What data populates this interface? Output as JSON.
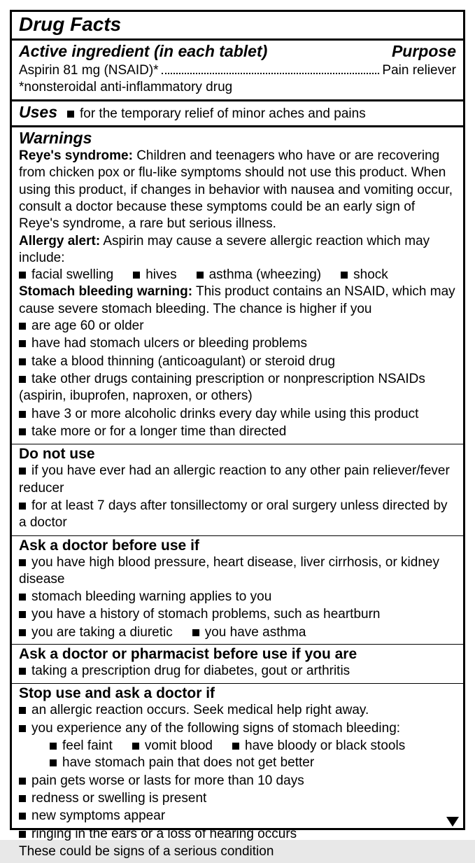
{
  "colors": {
    "border": "#000000",
    "bg": "#ffffff",
    "text": "#000000"
  },
  "title": "Drug Facts",
  "active": {
    "heading_left": "Active ingredient (in each tablet)",
    "heading_right": "Purpose",
    "ingredient": "Aspirin 81 mg (NSAID)*",
    "purpose": "Pain reliever",
    "footnote": "*nonsteroidal anti-inflammatory drug"
  },
  "uses": {
    "heading": "Uses",
    "text": "for the temporary relief of minor aches and pains"
  },
  "warnings": {
    "heading": "Warnings",
    "reyes_label": "Reye's syndrome:",
    "reyes_text": " Children and teenagers who have or are recovering from chicken pox or flu-like symptoms should not use this product. When using this product, if changes in behavior with nausea and vomiting occur, consult a doctor because these symptoms could be an early sign of Reye's syndrome, a rare but serious illness.",
    "allergy_label": "Allergy alert:",
    "allergy_text": " Aspirin may cause a severe allergic reaction which may include:",
    "allergy_items": [
      "facial swelling",
      "hives",
      "asthma (wheezing)",
      "shock"
    ],
    "stomach_label": "Stomach bleeding warning:",
    "stomach_text": " This product contains an NSAID, which may cause severe stomach bleeding. The chance is higher if you",
    "stomach_items": [
      "are age 60 or older",
      "have had stomach ulcers or bleeding problems",
      "take a blood thinning (anticoagulant) or steroid drug",
      "take other drugs containing prescription or nonprescription NSAIDs (aspirin, ibuprofen, naproxen, or others)",
      "have 3 or more alcoholic drinks every day while using this product",
      "take more or for a longer time than directed"
    ]
  },
  "donotuse": {
    "heading": "Do not use",
    "items": [
      "if you have ever had an allergic reaction to any other pain reliever/fever reducer",
      "for at least 7 days after tonsillectomy or oral surgery unless directed by a doctor"
    ]
  },
  "askdoctor": {
    "heading": "Ask a doctor before use if",
    "items": [
      "you have high blood pressure, heart disease, liver cirrhosis, or kidney disease",
      "stomach bleeding warning applies to you",
      "you have a history of stomach problems, such as heartburn"
    ],
    "inline_items": [
      "you are taking a diuretic",
      "you have asthma"
    ]
  },
  "askpharm": {
    "heading": "Ask a doctor or pharmacist before use if you are",
    "items": [
      "taking a prescription drug for diabetes, gout or arthritis"
    ]
  },
  "stopuse": {
    "heading": "Stop use and ask a doctor if",
    "items_top": [
      "an allergic reaction occurs. Seek medical help right away.",
      "you experience any of the following signs of stomach bleeding:"
    ],
    "sub_inline": [
      "feel faint",
      "vomit blood",
      "have bloody or black stools"
    ],
    "sub_block": [
      "have stomach pain that does not get better"
    ],
    "items_bottom": [
      "pain gets worse or lasts for more than 10 days",
      "redness or swelling is present",
      "new symptoms appear",
      "ringing in the ears or a loss of hearing occurs"
    ],
    "tail": "These could be signs of a serious condition"
  }
}
